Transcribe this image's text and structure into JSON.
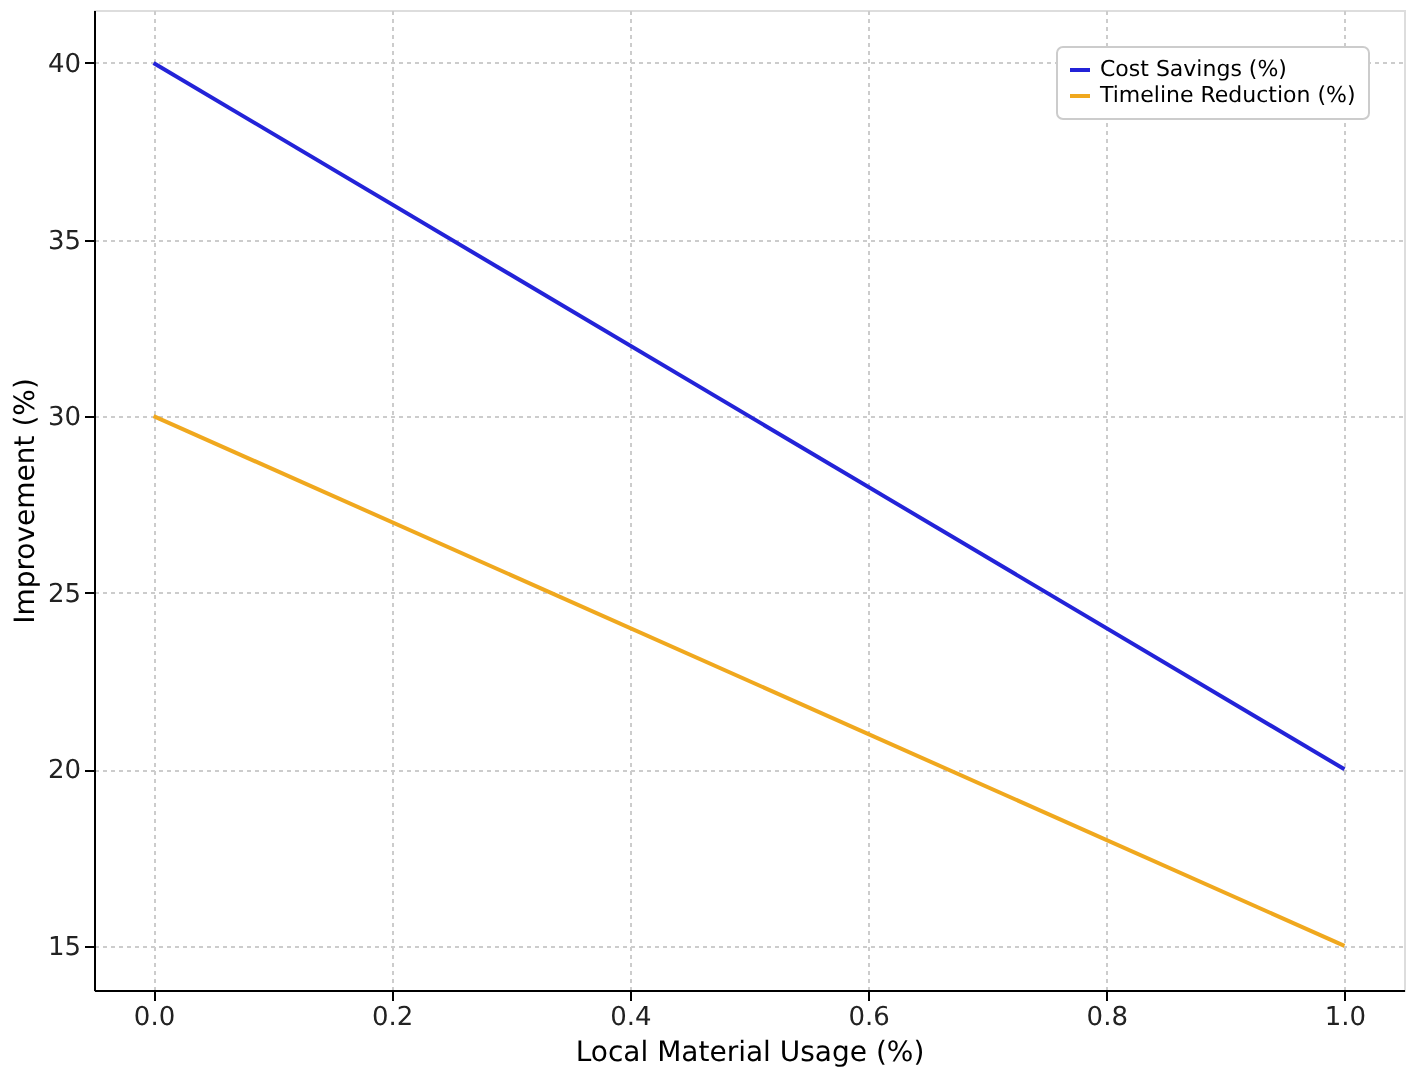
{
  "chart_data": {
    "type": "line",
    "xlabel": "Local Material Usage (%)",
    "ylabel": "Improvement (%)",
    "x": [
      0.0,
      1.0
    ],
    "series": [
      {
        "name": "Cost Savings (%)",
        "color": "#2323d8",
        "values": [
          40,
          20
        ]
      },
      {
        "name": "Timeline Reduction (%)",
        "color": "#f0a81e",
        "values": [
          30,
          15
        ]
      }
    ],
    "xlim": [
      -0.05,
      1.05
    ],
    "ylim": [
      13.75,
      41.5
    ],
    "xticks": [
      {
        "value": 0,
        "label": "0.0"
      },
      {
        "value": 0.2,
        "label": "0.2"
      },
      {
        "value": 0.4,
        "label": "0.4"
      },
      {
        "value": 0.6,
        "label": "0.6"
      },
      {
        "value": 0.8,
        "label": "0.8"
      },
      {
        "value": 1,
        "label": "1.0"
      }
    ],
    "yticks": [
      15,
      20,
      25,
      30,
      35,
      40
    ],
    "grid": true,
    "legend": "top right",
    "marker": "none",
    "line_style": "solid"
  }
}
